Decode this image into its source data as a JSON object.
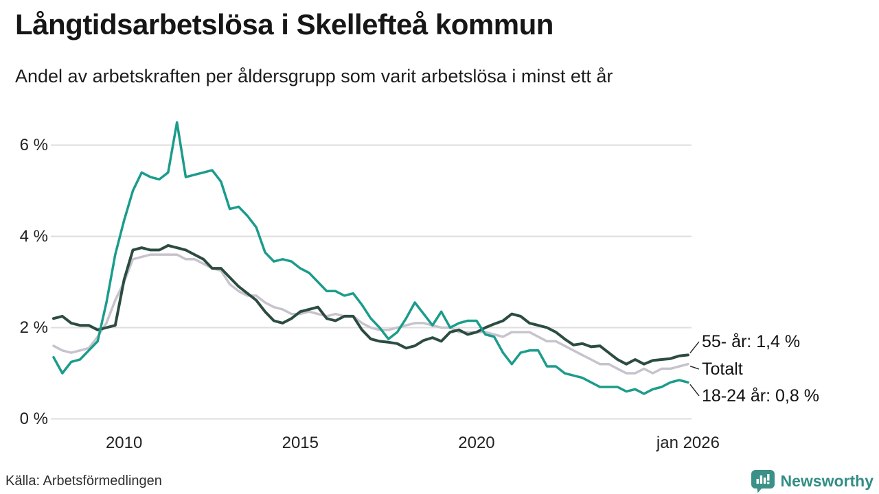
{
  "header": {
    "title": "Långtidsarbetslösa i Skellefteå kommun",
    "subtitle": "Andel av arbetskraften per åldersgrupp som varit arbetslösa i minst ett år"
  },
  "footer": {
    "source": "Källa: Arbetsförmedlingen",
    "brand": "Newsworthy",
    "brand_color": "#328e84",
    "logo_icon": "speech-bubble-bar-chart"
  },
  "chart_data": {
    "type": "line",
    "title": "Långtidsarbetslösa i Skellefteå kommun",
    "subtitle": "Andel av arbetskraften per åldersgrupp som varit arbetslösa i minst ett år",
    "xlabel": "",
    "ylabel": "",
    "x_unit": "decimal year, quarterly samples, 2008 - jan 2026",
    "ylim": [
      0,
      6.8
    ],
    "yticks": [
      0,
      2,
      4,
      6
    ],
    "ytick_labels": [
      "0 %",
      "2 %",
      "4 %",
      "6 %"
    ],
    "xticks": [
      2010,
      2015,
      2020,
      2026
    ],
    "xtick_labels": [
      "2010",
      "2015",
      "2020",
      "jan 2026"
    ],
    "grid": "horizontal",
    "grid_color": "#dedede",
    "legend_position": "end-of-line labels at right",
    "x": [
      2008,
      2008.25,
      2008.5,
      2008.75,
      2009,
      2009.25,
      2009.5,
      2009.75,
      2010,
      2010.25,
      2010.5,
      2010.75,
      2011,
      2011.25,
      2011.5,
      2011.75,
      2012,
      2012.25,
      2012.5,
      2012.75,
      2013,
      2013.25,
      2013.5,
      2013.75,
      2014,
      2014.25,
      2014.5,
      2014.75,
      2015,
      2015.25,
      2015.5,
      2015.75,
      2016,
      2016.25,
      2016.5,
      2016.75,
      2017,
      2017.25,
      2017.5,
      2017.75,
      2018,
      2018.25,
      2018.5,
      2018.75,
      2019,
      2019.25,
      2019.5,
      2019.75,
      2020,
      2020.25,
      2020.5,
      2020.75,
      2021,
      2021.25,
      2021.5,
      2021.75,
      2022,
      2022.25,
      2022.5,
      2022.75,
      2023,
      2023.25,
      2023.5,
      2023.75,
      2024,
      2024.25,
      2024.5,
      2024.75,
      2025,
      2025.25,
      2025.5,
      2025.75,
      2026
    ],
    "series": [
      {
        "name": "55- år",
        "end_label": "55- år: 1,4 %",
        "end_value_text": "1,4 %",
        "color": "#2c4c41",
        "values": [
          2.2,
          2.25,
          2.1,
          2.05,
          2.05,
          1.95,
          2.0,
          2.05,
          3.05,
          3.7,
          3.75,
          3.7,
          3.7,
          3.8,
          3.75,
          3.7,
          3.6,
          3.5,
          3.3,
          3.3,
          3.1,
          2.9,
          2.75,
          2.6,
          2.35,
          2.15,
          2.1,
          2.2,
          2.35,
          2.4,
          2.45,
          2.2,
          2.15,
          2.25,
          2.25,
          1.95,
          1.75,
          1.7,
          1.68,
          1.65,
          1.55,
          1.6,
          1.72,
          1.78,
          1.7,
          1.9,
          1.95,
          1.85,
          1.9,
          2.0,
          2.08,
          2.15,
          2.3,
          2.25,
          2.1,
          2.05,
          2.0,
          1.9,
          1.75,
          1.62,
          1.65,
          1.58,
          1.6,
          1.45,
          1.3,
          1.2,
          1.3,
          1.2,
          1.28,
          1.3,
          1.32,
          1.38,
          1.4
        ]
      },
      {
        "name": "Totalt",
        "end_label": "Totalt",
        "end_value_text": "",
        "color": "#c6c3cd",
        "values": [
          1.6,
          1.5,
          1.45,
          1.5,
          1.55,
          1.8,
          2.1,
          2.6,
          3.0,
          3.5,
          3.55,
          3.6,
          3.6,
          3.6,
          3.6,
          3.5,
          3.5,
          3.4,
          3.3,
          3.25,
          2.95,
          2.8,
          2.7,
          2.7,
          2.55,
          2.45,
          2.4,
          2.3,
          2.3,
          2.35,
          2.3,
          2.25,
          2.3,
          2.25,
          2.25,
          2.1,
          2.0,
          1.95,
          1.95,
          2.0,
          2.05,
          2.1,
          2.1,
          2.05,
          2.0,
          2.0,
          1.9,
          1.9,
          1.9,
          1.9,
          1.85,
          1.8,
          1.9,
          1.9,
          1.9,
          1.8,
          1.7,
          1.7,
          1.6,
          1.5,
          1.4,
          1.3,
          1.2,
          1.2,
          1.1,
          1.0,
          1.0,
          1.1,
          1.0,
          1.1,
          1.1,
          1.15,
          1.2
        ]
      },
      {
        "name": "18-24 år",
        "end_label": "18-24 år: 0,8 %",
        "end_value_text": "0,8 %",
        "color": "#1b9c8b",
        "values": [
          1.35,
          1.0,
          1.25,
          1.3,
          1.5,
          1.7,
          2.55,
          3.6,
          4.35,
          5.0,
          5.4,
          5.3,
          5.25,
          5.4,
          6.5,
          5.3,
          5.35,
          5.4,
          5.45,
          5.2,
          4.6,
          4.65,
          4.45,
          4.2,
          3.65,
          3.45,
          3.5,
          3.45,
          3.3,
          3.2,
          3.0,
          2.8,
          2.8,
          2.7,
          2.75,
          2.5,
          2.2,
          2.0,
          1.75,
          1.9,
          2.2,
          2.55,
          2.3,
          2.05,
          2.35,
          2.0,
          2.1,
          2.15,
          2.15,
          1.85,
          1.8,
          1.45,
          1.2,
          1.45,
          1.5,
          1.5,
          1.15,
          1.15,
          1.0,
          0.95,
          0.9,
          0.8,
          0.7,
          0.7,
          0.7,
          0.6,
          0.65,
          0.55,
          0.65,
          0.7,
          0.8,
          0.85,
          0.8
        ]
      }
    ]
  }
}
